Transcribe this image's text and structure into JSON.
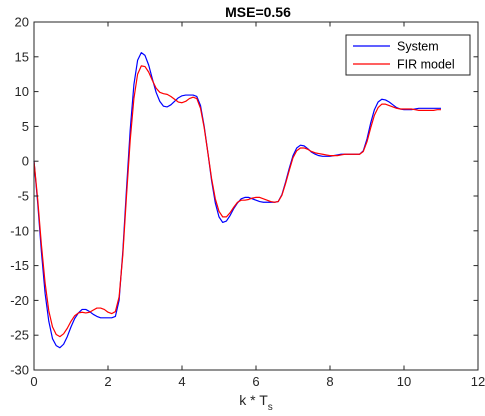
{
  "chart_data": {
    "type": "line",
    "title": "MSE=0.56",
    "xlabel": "k * T",
    "xlabel_subscript": "s",
    "ylabel": "",
    "xlim": [
      0,
      12
    ],
    "ylim": [
      -30,
      20
    ],
    "xticks": [
      "0",
      "2",
      "4",
      "6",
      "8",
      "10",
      "12"
    ],
    "yticks": [
      "20",
      "15",
      "10",
      "5",
      "0",
      "-5",
      "-10",
      "-15",
      "-20",
      "-25",
      "-30"
    ],
    "grid": false,
    "legend_position": "top-right",
    "series": [
      {
        "name": "System",
        "color": "#0000ff",
        "points": [
          [
            0.0,
            0.0
          ],
          [
            0.1,
            -6.0
          ],
          [
            0.2,
            -13.0
          ],
          [
            0.3,
            -19.0
          ],
          [
            0.4,
            -23.0
          ],
          [
            0.5,
            -25.5
          ],
          [
            0.6,
            -26.5
          ],
          [
            0.7,
            -26.8
          ],
          [
            0.8,
            -26.3
          ],
          [
            0.9,
            -25.2
          ],
          [
            1.0,
            -23.8
          ],
          [
            1.1,
            -22.6
          ],
          [
            1.2,
            -21.8
          ],
          [
            1.3,
            -21.3
          ],
          [
            1.4,
            -21.3
          ],
          [
            1.5,
            -21.6
          ],
          [
            1.6,
            -22.0
          ],
          [
            1.7,
            -22.3
          ],
          [
            1.8,
            -22.5
          ],
          [
            1.9,
            -22.5
          ],
          [
            2.0,
            -22.5
          ],
          [
            2.1,
            -22.5
          ],
          [
            2.2,
            -22.3
          ],
          [
            2.3,
            -20.0
          ],
          [
            2.4,
            -13.0
          ],
          [
            2.5,
            -4.0
          ],
          [
            2.6,
            4.5
          ],
          [
            2.7,
            11.0
          ],
          [
            2.8,
            14.5
          ],
          [
            2.9,
            15.6
          ],
          [
            3.0,
            15.2
          ],
          [
            3.1,
            13.8
          ],
          [
            3.2,
            11.8
          ],
          [
            3.3,
            9.9
          ],
          [
            3.4,
            8.6
          ],
          [
            3.5,
            7.9
          ],
          [
            3.6,
            7.8
          ],
          [
            3.7,
            8.1
          ],
          [
            3.8,
            8.6
          ],
          [
            3.9,
            9.1
          ],
          [
            4.0,
            9.4
          ],
          [
            4.1,
            9.5
          ],
          [
            4.2,
            9.5
          ],
          [
            4.3,
            9.5
          ],
          [
            4.4,
            9.3
          ],
          [
            4.5,
            8.0
          ],
          [
            4.6,
            5.0
          ],
          [
            4.7,
            1.2
          ],
          [
            4.8,
            -2.8
          ],
          [
            4.9,
            -6.0
          ],
          [
            5.0,
            -8.0
          ],
          [
            5.1,
            -8.8
          ],
          [
            5.2,
            -8.6
          ],
          [
            5.3,
            -7.8
          ],
          [
            5.4,
            -6.8
          ],
          [
            5.5,
            -6.0
          ],
          [
            5.6,
            -5.4
          ],
          [
            5.7,
            -5.2
          ],
          [
            5.8,
            -5.2
          ],
          [
            5.9,
            -5.4
          ],
          [
            6.0,
            -5.6
          ],
          [
            6.1,
            -5.8
          ],
          [
            6.2,
            -5.9
          ],
          [
            6.3,
            -5.9
          ],
          [
            6.4,
            -5.9
          ],
          [
            6.5,
            -5.9
          ],
          [
            6.6,
            -5.8
          ],
          [
            6.7,
            -4.8
          ],
          [
            6.8,
            -3.0
          ],
          [
            6.9,
            -1.0
          ],
          [
            7.0,
            0.8
          ],
          [
            7.1,
            1.9
          ],
          [
            7.2,
            2.3
          ],
          [
            7.3,
            2.2
          ],
          [
            7.4,
            1.8
          ],
          [
            7.5,
            1.3
          ],
          [
            7.6,
            1.0
          ],
          [
            7.7,
            0.8
          ],
          [
            7.8,
            0.7
          ],
          [
            7.9,
            0.7
          ],
          [
            8.0,
            0.7
          ],
          [
            8.1,
            0.8
          ],
          [
            8.2,
            0.9
          ],
          [
            8.3,
            1.0
          ],
          [
            8.4,
            1.0
          ],
          [
            8.5,
            1.0
          ],
          [
            8.6,
            1.0
          ],
          [
            8.7,
            1.0
          ],
          [
            8.8,
            1.0
          ],
          [
            8.9,
            1.5
          ],
          [
            9.0,
            3.2
          ],
          [
            9.1,
            5.5
          ],
          [
            9.2,
            7.4
          ],
          [
            9.3,
            8.5
          ],
          [
            9.4,
            8.9
          ],
          [
            9.5,
            8.8
          ],
          [
            9.6,
            8.5
          ],
          [
            9.7,
            8.1
          ],
          [
            9.8,
            7.7
          ],
          [
            9.9,
            7.5
          ],
          [
            10.0,
            7.4
          ],
          [
            10.1,
            7.4
          ],
          [
            10.2,
            7.4
          ],
          [
            10.3,
            7.5
          ],
          [
            10.4,
            7.6
          ],
          [
            10.5,
            7.6
          ],
          [
            10.6,
            7.6
          ],
          [
            10.7,
            7.6
          ],
          [
            10.8,
            7.6
          ],
          [
            10.9,
            7.6
          ],
          [
            11.0,
            7.6
          ]
        ]
      },
      {
        "name": "FIR model",
        "color": "#ff0000",
        "points": [
          [
            0.0,
            0.0
          ],
          [
            0.1,
            -5.5
          ],
          [
            0.2,
            -12.0
          ],
          [
            0.3,
            -17.5
          ],
          [
            0.4,
            -21.5
          ],
          [
            0.5,
            -23.8
          ],
          [
            0.6,
            -24.9
          ],
          [
            0.7,
            -25.2
          ],
          [
            0.8,
            -24.8
          ],
          [
            0.9,
            -24.0
          ],
          [
            1.0,
            -23.0
          ],
          [
            1.1,
            -22.2
          ],
          [
            1.2,
            -21.8
          ],
          [
            1.3,
            -21.7
          ],
          [
            1.4,
            -21.8
          ],
          [
            1.5,
            -21.7
          ],
          [
            1.6,
            -21.4
          ],
          [
            1.7,
            -21.1
          ],
          [
            1.8,
            -21.1
          ],
          [
            1.9,
            -21.3
          ],
          [
            2.0,
            -21.7
          ],
          [
            2.1,
            -21.9
          ],
          [
            2.2,
            -21.6
          ],
          [
            2.3,
            -19.5
          ],
          [
            2.4,
            -13.5
          ],
          [
            2.5,
            -5.0
          ],
          [
            2.6,
            3.0
          ],
          [
            2.7,
            9.0
          ],
          [
            2.8,
            12.5
          ],
          [
            2.9,
            13.7
          ],
          [
            3.0,
            13.6
          ],
          [
            3.1,
            12.8
          ],
          [
            3.2,
            11.6
          ],
          [
            3.3,
            10.5
          ],
          [
            3.4,
            9.9
          ],
          [
            3.5,
            9.7
          ],
          [
            3.6,
            9.6
          ],
          [
            3.7,
            9.3
          ],
          [
            3.8,
            8.9
          ],
          [
            3.9,
            8.5
          ],
          [
            4.0,
            8.4
          ],
          [
            4.1,
            8.6
          ],
          [
            4.2,
            9.0
          ],
          [
            4.3,
            9.2
          ],
          [
            4.4,
            9.0
          ],
          [
            4.5,
            7.6
          ],
          [
            4.6,
            4.8
          ],
          [
            4.7,
            1.2
          ],
          [
            4.8,
            -2.5
          ],
          [
            4.9,
            -5.4
          ],
          [
            5.0,
            -7.2
          ],
          [
            5.1,
            -8.0
          ],
          [
            5.2,
            -8.0
          ],
          [
            5.3,
            -7.4
          ],
          [
            5.4,
            -6.6
          ],
          [
            5.5,
            -5.9
          ],
          [
            5.6,
            -5.6
          ],
          [
            5.7,
            -5.6
          ],
          [
            5.8,
            -5.5
          ],
          [
            5.9,
            -5.3
          ],
          [
            6.0,
            -5.2
          ],
          [
            6.1,
            -5.2
          ],
          [
            6.2,
            -5.4
          ],
          [
            6.3,
            -5.6
          ],
          [
            6.4,
            -5.8
          ],
          [
            6.5,
            -5.9
          ],
          [
            6.6,
            -5.8
          ],
          [
            6.7,
            -4.9
          ],
          [
            6.8,
            -3.2
          ],
          [
            6.9,
            -1.3
          ],
          [
            7.0,
            0.5
          ],
          [
            7.1,
            1.5
          ],
          [
            7.2,
            1.9
          ],
          [
            7.3,
            1.9
          ],
          [
            7.4,
            1.7
          ],
          [
            7.5,
            1.4
          ],
          [
            7.6,
            1.2
          ],
          [
            7.7,
            1.1
          ],
          [
            7.8,
            1.0
          ],
          [
            7.9,
            0.9
          ],
          [
            8.0,
            0.8
          ],
          [
            8.1,
            0.8
          ],
          [
            8.2,
            0.8
          ],
          [
            8.3,
            0.9
          ],
          [
            8.4,
            1.0
          ],
          [
            8.5,
            1.0
          ],
          [
            8.6,
            1.0
          ],
          [
            8.7,
            1.0
          ],
          [
            8.8,
            1.0
          ],
          [
            8.9,
            1.4
          ],
          [
            9.0,
            2.8
          ],
          [
            9.1,
            4.8
          ],
          [
            9.2,
            6.6
          ],
          [
            9.3,
            7.7
          ],
          [
            9.4,
            8.2
          ],
          [
            9.5,
            8.2
          ],
          [
            9.6,
            8.0
          ],
          [
            9.7,
            7.8
          ],
          [
            9.8,
            7.6
          ],
          [
            9.9,
            7.5
          ],
          [
            10.0,
            7.5
          ],
          [
            10.1,
            7.5
          ],
          [
            10.2,
            7.5
          ],
          [
            10.3,
            7.4
          ],
          [
            10.4,
            7.3
          ],
          [
            10.5,
            7.3
          ],
          [
            10.6,
            7.3
          ],
          [
            10.7,
            7.3
          ],
          [
            10.8,
            7.3
          ],
          [
            10.9,
            7.4
          ],
          [
            11.0,
            7.4
          ]
        ]
      }
    ]
  }
}
